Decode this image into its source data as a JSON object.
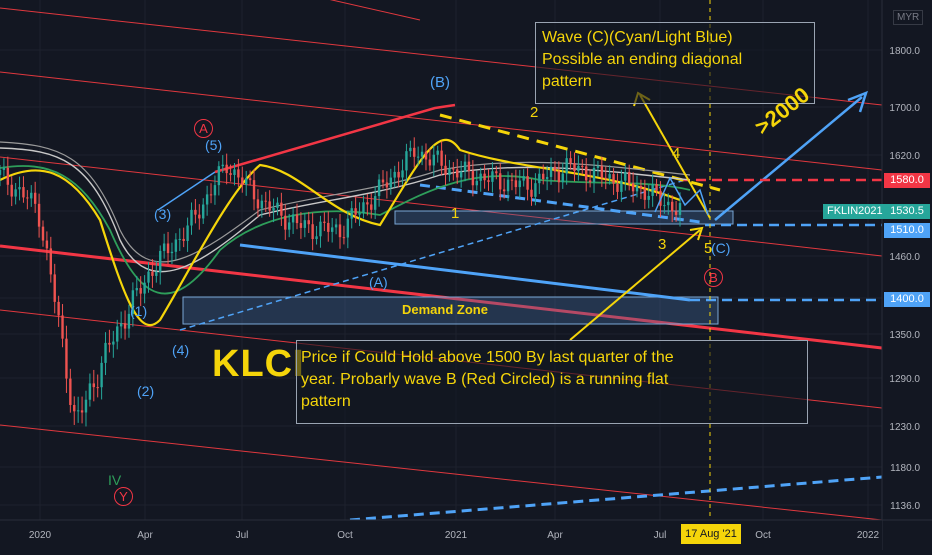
{
  "chart_data": {
    "type": "candlestick",
    "currency": "MYR",
    "symbol_tag": "FKLIN2021",
    "last_price": "1530.5",
    "y_ticks": [
      "1800.0",
      "1700.0",
      "1620.0",
      "1530.0",
      "1460.0",
      "1400.0",
      "1350.0",
      "1290.0",
      "1230.0",
      "1180.0",
      "1136.0"
    ],
    "x_ticks": [
      "2020",
      "Apr",
      "Jul",
      "Oct",
      "2021",
      "Apr",
      "Jul",
      "Oct",
      "2022"
    ],
    "date_marker": "17 Aug '21",
    "price_levels": [
      {
        "value": "1580.0",
        "color": "#f23645",
        "style": "dashed"
      },
      {
        "value": "1510.0",
        "color": "#4fa3f7",
        "style": "dashed"
      },
      {
        "value": "1400.0",
        "color": "#4fa3f7",
        "style": "dashed"
      }
    ],
    "series_close": [
      [
        "2020-01",
        1588
      ],
      [
        "2020-02",
        1535
      ],
      [
        "2020-03",
        1230
      ],
      [
        "2020-04",
        1345
      ],
      [
        "2020-05",
        1440
      ],
      [
        "2020-06",
        1505
      ],
      [
        "2020-07",
        1605
      ],
      [
        "2020-08",
        1540
      ],
      [
        "2020-09",
        1505
      ],
      [
        "2020-10",
        1500
      ],
      [
        "2020-11",
        1560
      ],
      [
        "2020-12",
        1627
      ],
      [
        "2021-01",
        1595
      ],
      [
        "2021-02",
        1580
      ],
      [
        "2021-03",
        1570
      ],
      [
        "2021-04",
        1602
      ],
      [
        "2021-05",
        1585
      ],
      [
        "2021-06",
        1565
      ],
      [
        "2021-07",
        1530
      ]
    ],
    "colors": {
      "up": "#26a69a",
      "down": "#ef5350",
      "ma_yellow": "#f5d50a",
      "ma_green": "#2e9e5a",
      "ma_white": "#c8c8c8",
      "accent_blue": "#4fa3f7",
      "accent_red": "#f23645"
    }
  },
  "labels": {
    "demand_zone": "Demand Zone",
    "kicker": "KLCI",
    "note_c_line1": "Wave (C)(Cyan/Light Blue)",
    "note_c_line2": "Possible an ending diagonal",
    "note_c_line3": "pattern",
    "note_b_line1": "Price if Could Hold above 1500 By last quarter of the",
    "note_b_line2": "year. Probarly wave B (Red Circled) is a running flat",
    "note_b_line3": "pattern",
    "target": ">2000"
  },
  "waves": {
    "circled_A": "A",
    "circled_B": "B",
    "circled_Y": "Y",
    "iv": "IV",
    "w1": "(1)",
    "w2": "(2)",
    "w3": "(3)",
    "w4": "(4)",
    "w5": "(5)",
    "wA": "(A)",
    "wB": "(B)",
    "wC": "(C)",
    "s1": "1",
    "s2": "2",
    "s3": "3",
    "s4": "4",
    "s5": "5"
  }
}
